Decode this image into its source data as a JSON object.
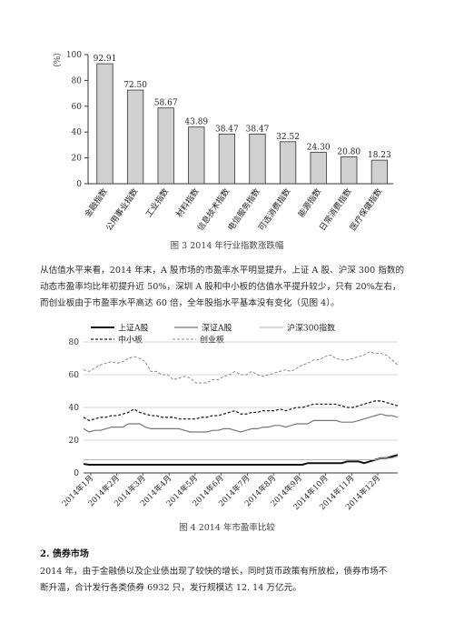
{
  "chart_data": [
    {
      "type": "bar",
      "ylabel": "（%）",
      "ylim": [
        0,
        100
      ],
      "yticks": [
        0,
        20,
        40,
        60,
        80,
        100
      ],
      "categories": [
        "金融指数",
        "公用事业指数",
        "工业指数",
        "材料指数",
        "信息技术指数",
        "电信服务指数",
        "可选消费指数",
        "能源指数",
        "日常消费指数",
        "医疗保健指数"
      ],
      "values": [
        92.91,
        72.5,
        58.67,
        43.89,
        38.47,
        38.47,
        32.52,
        24.3,
        20.8,
        18.23
      ],
      "value_labels": [
        "92.91",
        "72.50",
        "58.67",
        "43.89",
        "38.47",
        "38.47",
        "32.52",
        "24.30",
        "20.80",
        "18.23"
      ],
      "bar_color": "#d0d0d0",
      "grid": false
    },
    {
      "type": "line",
      "ylim": [
        0,
        80
      ],
      "yticks": [
        0,
        20,
        40,
        60,
        80
      ],
      "x_labels": [
        "2014年1月",
        "2014年2月",
        "2014年3月",
        "2014年4月",
        "2014年5月",
        "2014年6月",
        "2014年7月",
        "2014年8月",
        "2014年9月",
        "2014年10月",
        "2014年11月",
        "2014年12月"
      ],
      "legend_placement": "top",
      "grid": "horizontal",
      "series": [
        {
          "name": "上证A股",
          "style": "solid-thick",
          "color": "#111111",
          "values": [
            5.5,
            5,
            5,
            5,
            5,
            5,
            5,
            5,
            5,
            5,
            5,
            5,
            5,
            5,
            5,
            5,
            5,
            5,
            5,
            5,
            5,
            5,
            5,
            5,
            5,
            5,
            5,
            5,
            5,
            5,
            5,
            5,
            5,
            5,
            5,
            5,
            5,
            5,
            5,
            5,
            6,
            6,
            6,
            6,
            6,
            6,
            6,
            7,
            7,
            7,
            6,
            7,
            8,
            9,
            9,
            10,
            11
          ]
        },
        {
          "name": "深证A股",
          "style": "solid",
          "color": "#777777",
          "values": [
            27,
            25,
            26,
            26,
            27,
            28,
            28,
            28,
            30,
            30,
            30,
            28,
            27,
            27,
            27,
            27,
            27,
            27,
            26,
            25,
            25,
            25,
            25,
            26,
            26,
            27,
            27,
            26,
            25,
            26,
            27,
            27,
            28,
            28,
            29,
            29,
            28,
            29,
            30,
            30,
            30,
            32,
            32,
            32,
            32,
            32,
            31,
            31,
            31,
            32,
            33,
            34,
            35,
            36,
            35,
            35,
            34
          ]
        },
        {
          "name": "沪深300指数",
          "style": "solid-thin",
          "color": "#aaaaaa",
          "values": [
            8,
            8,
            8,
            8,
            8,
            8,
            8,
            8,
            8,
            8,
            8,
            8,
            8,
            8,
            8,
            8,
            8,
            8,
            8,
            8,
            8,
            8,
            8,
            8,
            8,
            8,
            8,
            8,
            8,
            8,
            8,
            8,
            8,
            8,
            8,
            8,
            8,
            8,
            8,
            8,
            8,
            8,
            8,
            8,
            8,
            8,
            8,
            8,
            8,
            8,
            8,
            8,
            8,
            9,
            9,
            9,
            10
          ]
        },
        {
          "name": "中小板",
          "style": "dashed-thick",
          "color": "#222222",
          "values": [
            34,
            32,
            33,
            34,
            34,
            35,
            35,
            36,
            37,
            39,
            37,
            36,
            35,
            35,
            34,
            34,
            34,
            33,
            33,
            33,
            33,
            34,
            34,
            35,
            35,
            36,
            37,
            38,
            36,
            36,
            37,
            37,
            38,
            38,
            38,
            39,
            38,
            39,
            40,
            40,
            41,
            42,
            42,
            42,
            42,
            42,
            41,
            40,
            40,
            41,
            42,
            43,
            44,
            44,
            43,
            42,
            41
          ]
        },
        {
          "name": "创业板",
          "style": "dashed",
          "color": "#888888",
          "values": [
            63,
            62,
            64,
            66,
            67,
            68,
            67,
            68,
            70,
            71,
            70,
            68,
            62,
            62,
            60,
            60,
            57,
            58,
            59,
            58,
            55,
            55,
            55,
            57,
            57,
            59,
            60,
            62,
            60,
            60,
            62,
            60,
            59,
            60,
            61,
            62,
            63,
            62,
            64,
            66,
            67,
            69,
            69,
            71,
            72,
            70,
            69,
            69,
            70,
            71,
            72,
            74,
            73,
            73,
            72,
            69,
            66
          ]
        }
      ]
    }
  ],
  "captions": {
    "fig3": "图 3  2014 年行业指数涨跌幅",
    "fig4": "图 4  2014 年市盈率比较"
  },
  "para1": [
    "从估值水平来看，2014 年末，A 股市场的市盈率水平明显提升。上证 A 股、沪深 300 指数的",
    "动态市盈率均比年初提升近 50%，深圳 A 股和中小板的估值水平提升较少，只有 20%左右，",
    "而创业板由于市盈率水平高达 60 倍，全年股指水平基本没有变化（见图 4）。"
  ],
  "heading2": "2. 债券市场",
  "para2": [
    "2014 年，由于金融债以及企业债出现了较快的增长，同时货币政策有所放松，债券市场不",
    "断升温，合计发行各类债券 6932 只，发行规模达 12. 14 万亿元。"
  ]
}
